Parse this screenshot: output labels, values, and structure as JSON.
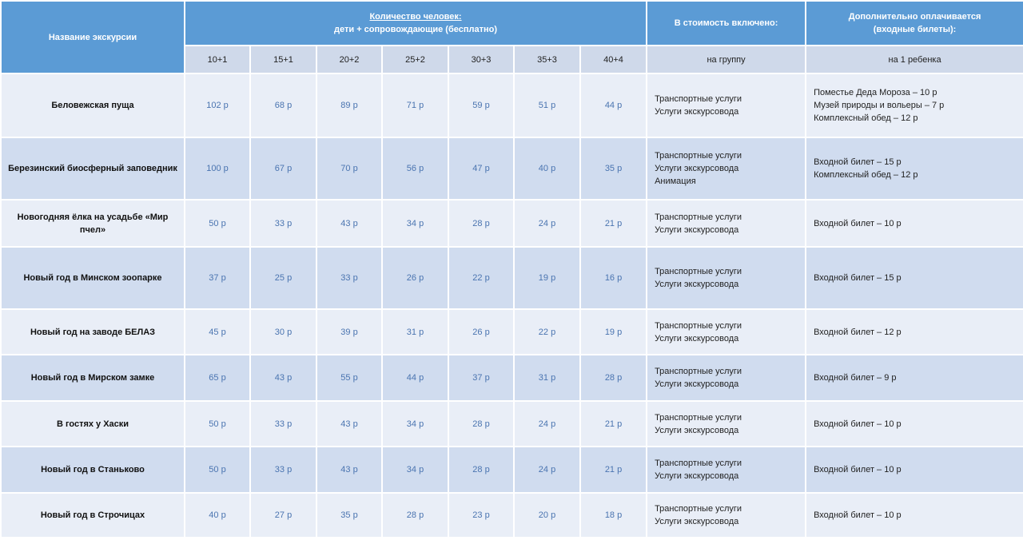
{
  "header": {
    "name_col": "Название экскурсии",
    "people_title": "Количество человек:",
    "people_sub": "дети + сопровождающие (бесплатно)",
    "included": "В стоимость включено:",
    "extra_line1": "Дополнительно оплачивается",
    "extra_line2": "(входные билеты):",
    "groups": [
      "10+1",
      "15+1",
      "20+2",
      "25+2",
      "30+3",
      "35+3",
      "40+4"
    ],
    "included_sub": "на группу",
    "extra_sub": "на 1 ребенка"
  },
  "rows": [
    {
      "name": "Беловежская пуща",
      "prices": [
        "102 р",
        "68 р",
        "89 р",
        "71 р",
        "59 р",
        "51 р",
        "44 р"
      ],
      "included": [
        "Транспортные услуги",
        "Услуги экскурсовода"
      ],
      "extra": [
        "Поместье Деда Мороза – 10 р",
        "Музей природы и вольеры – 7 р",
        "Комплексный обед – 12 р"
      ]
    },
    {
      "name": "Березинский биосферный заповедник",
      "prices": [
        "100 р",
        "67 р",
        "70 р",
        "56 р",
        "47 р",
        "40 р",
        "35 р"
      ],
      "included": [
        "Транспортные услуги",
        "Услуги экскурсовода",
        "Анимация"
      ],
      "extra": [
        "Входной билет – 15 р",
        "Комплексный обед – 12 р"
      ]
    },
    {
      "name": "Новогодняя ёлка на усадьбе «Мир пчел»",
      "prices": [
        "50 р",
        "33 р",
        "43 р",
        "34 р",
        "28 р",
        "24 р",
        "21 р"
      ],
      "included": [
        "Транспортные услуги",
        "Услуги экскурсовода"
      ],
      "extra": [
        "Входной билет – 10 р"
      ]
    },
    {
      "name": "Новый год в Минском зоопарке",
      "prices": [
        "37 р",
        "25 р",
        "33 р",
        "26 р",
        "22 р",
        "19 р",
        "16 р"
      ],
      "included": [
        "Транспортные услуги",
        "Услуги экскурсовода"
      ],
      "extra": [
        "Входной билет – 15 р"
      ]
    },
    {
      "name": "Новый год на заводе БЕЛАЗ",
      "prices": [
        "45 р",
        "30 р",
        "39 р",
        "31 р",
        "26 р",
        "22 р",
        "19 р"
      ],
      "included": [
        "Транспортные услуги",
        "Услуги экскурсовода"
      ],
      "extra": [
        "Входной билет – 12 р"
      ]
    },
    {
      "name": "Новый год в Мирском замке",
      "prices": [
        "65 р",
        "43 р",
        "55 р",
        "44 р",
        "37 р",
        "31 р",
        "28 р"
      ],
      "included": [
        "Транспортные услуги",
        "Услуги экскурсовода"
      ],
      "extra": [
        "Входной билет – 9 р"
      ]
    },
    {
      "name": "В гостях у Хаски",
      "prices": [
        "50 р",
        "33 р",
        "43 р",
        "34 р",
        "28 р",
        "24 р",
        "21 р"
      ],
      "included": [
        "Транспортные услуги",
        "Услуги экскурсовода"
      ],
      "extra": [
        "Входной билет – 10 р"
      ]
    },
    {
      "name": "Новый год в Станьково",
      "prices": [
        "50 р",
        "33 р",
        "43 р",
        "34 р",
        "28 р",
        "24 р",
        "21 р"
      ],
      "included": [
        "Транспортные услуги",
        "Услуги экскурсовода"
      ],
      "extra": [
        "Входной билет – 10 р"
      ]
    },
    {
      "name": "Новый год в Строчицах",
      "prices": [
        "40 р",
        "27 р",
        "35 р",
        "28 р",
        "23 р",
        "20 р",
        "18 р"
      ],
      "included": [
        "Транспортные услуги",
        "Услуги экскурсовода"
      ],
      "extra": [
        "Входной билет – 10 р"
      ]
    }
  ]
}
